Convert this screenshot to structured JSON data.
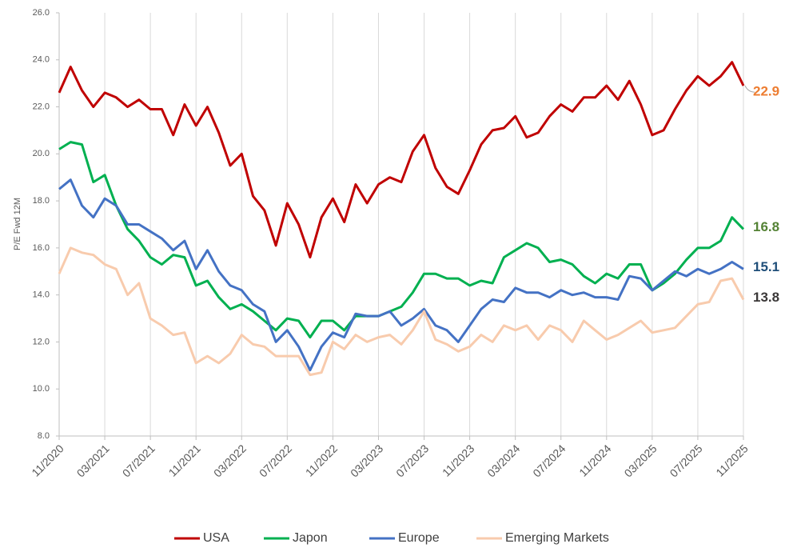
{
  "chart_data": {
    "type": "line",
    "y_label": "P/E Fwd 12M",
    "categories": [
      "11/2020",
      null,
      null,
      null,
      "03/2021",
      null,
      null,
      null,
      "07/2021",
      null,
      null,
      null,
      "11/2021",
      null,
      null,
      null,
      "03/2022",
      null,
      null,
      null,
      "07/2022",
      null,
      null,
      null,
      "11/2022",
      null,
      null,
      null,
      "03/2023",
      null,
      null,
      null,
      "07/2023",
      null,
      null,
      null,
      "11/2023",
      null,
      null,
      null,
      "03/2024",
      null,
      null,
      null,
      "07/2024",
      null,
      null,
      null,
      "11/2024",
      null,
      null,
      null,
      "03/2025",
      null,
      null,
      null,
      "07/2025",
      null,
      null,
      null,
      "11/2025"
    ],
    "series": [
      {
        "name": "USA",
        "color": "#c00000",
        "values": [
          22.6,
          23.7,
          22.7,
          22.0,
          22.6,
          22.4,
          22.0,
          22.3,
          21.9,
          21.9,
          20.8,
          22.1,
          21.2,
          22.0,
          20.9,
          19.5,
          20.0,
          18.2,
          17.6,
          16.1,
          17.9,
          17.0,
          15.6,
          17.3,
          18.1,
          17.1,
          18.7,
          17.9,
          18.7,
          19.0,
          18.8,
          20.1,
          20.8,
          19.4,
          18.6,
          18.3,
          19.3,
          20.4,
          21.0,
          21.1,
          21.6,
          20.7,
          20.9,
          21.6,
          22.1,
          21.8,
          22.4,
          22.4,
          22.9,
          22.3,
          23.1,
          22.1,
          20.8,
          21.0,
          21.9,
          22.7,
          23.3,
          22.9,
          23.3,
          23.9,
          22.9
        ]
      },
      {
        "name": "Japon",
        "color": "#00b050",
        "values": [
          20.2,
          20.5,
          20.4,
          18.8,
          19.1,
          17.8,
          16.8,
          16.3,
          15.6,
          15.3,
          15.7,
          15.6,
          14.4,
          14.6,
          13.9,
          13.4,
          13.6,
          13.3,
          12.9,
          12.5,
          13.0,
          12.9,
          12.2,
          12.9,
          12.9,
          12.5,
          13.1,
          13.1,
          13.1,
          13.3,
          13.5,
          14.1,
          14.9,
          14.9,
          14.7,
          14.7,
          14.4,
          14.6,
          14.5,
          15.6,
          15.9,
          16.2,
          16.0,
          15.4,
          15.5,
          15.3,
          14.8,
          14.5,
          14.9,
          14.7,
          15.3,
          15.3,
          14.2,
          14.5,
          14.9,
          15.5,
          16.0,
          16.0,
          16.3,
          17.3,
          16.8
        ]
      },
      {
        "name": "Europe",
        "color": "#4472c4",
        "values": [
          18.5,
          18.9,
          17.8,
          17.3,
          18.1,
          17.8,
          17.0,
          17.0,
          16.7,
          16.4,
          15.9,
          16.3,
          15.1,
          15.9,
          15.0,
          14.4,
          14.2,
          13.6,
          13.3,
          12.0,
          12.5,
          11.8,
          10.8,
          11.8,
          12.4,
          12.2,
          13.2,
          13.1,
          13.1,
          13.3,
          12.7,
          13.0,
          13.4,
          12.7,
          12.5,
          12.0,
          12.7,
          13.4,
          13.8,
          13.7,
          14.3,
          14.1,
          14.1,
          13.9,
          14.2,
          14.0,
          14.1,
          13.9,
          13.9,
          13.8,
          14.8,
          14.7,
          14.2,
          14.6,
          15.0,
          14.8,
          15.1,
          14.9,
          15.1,
          15.4,
          15.1
        ]
      },
      {
        "name": "Emerging Markets",
        "color": "#f8cbad",
        "values": [
          14.9,
          16.0,
          15.8,
          15.7,
          15.3,
          15.1,
          14.0,
          14.5,
          13.0,
          12.7,
          12.3,
          12.4,
          11.1,
          11.4,
          11.1,
          11.5,
          12.3,
          11.9,
          11.8,
          11.4,
          11.4,
          11.4,
          10.6,
          10.7,
          12.0,
          11.7,
          12.3,
          12.0,
          12.2,
          12.3,
          11.9,
          12.5,
          13.3,
          12.1,
          11.9,
          11.6,
          11.8,
          12.3,
          12.0,
          12.7,
          12.5,
          12.7,
          12.1,
          12.7,
          12.5,
          12.0,
          12.9,
          12.5,
          12.1,
          12.3,
          12.6,
          12.9,
          12.4,
          12.5,
          12.6,
          13.1,
          13.6,
          13.7,
          14.6,
          14.7,
          13.8
        ]
      }
    ],
    "annotations": [
      {
        "text": "22.9",
        "color": "#ed7d31"
      },
      {
        "text": "16.8",
        "color": "#548235"
      },
      {
        "text": "15.1",
        "color": "#1f4e79"
      },
      {
        "text": "13.8",
        "color": "#3b3838"
      }
    ],
    "ylim": [
      8,
      26
    ],
    "yticks": [
      {
        "value": 8,
        "label": "8.0"
      },
      {
        "value": 10,
        "label": "10.0"
      },
      {
        "value": 12,
        "label": "12.0"
      },
      {
        "value": 14,
        "label": "14.0"
      },
      {
        "value": 16,
        "label": "16.0"
      },
      {
        "value": 18,
        "label": "18.0"
      },
      {
        "value": 20,
        "label": "20.0"
      },
      {
        "value": 22,
        "label": "22.0"
      },
      {
        "value": 24,
        "label": "24.0"
      },
      {
        "value": 26,
        "label": "26.0"
      }
    ],
    "grid": true,
    "legend": "bottom"
  }
}
